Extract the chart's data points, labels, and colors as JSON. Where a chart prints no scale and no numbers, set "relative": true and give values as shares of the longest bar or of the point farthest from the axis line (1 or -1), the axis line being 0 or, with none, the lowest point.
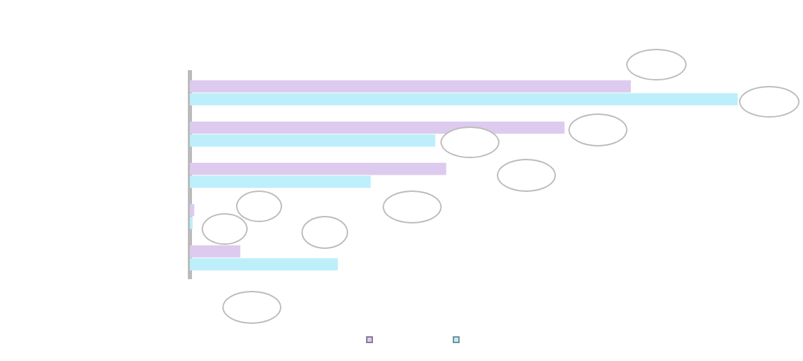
{
  "chart_data": {
    "type": "bar",
    "orientation": "horizontal",
    "relative": true,
    "categories": [
      null,
      null,
      null,
      null,
      null
    ],
    "series": [
      {
        "color": "#dccbee",
        "values": [
          0.805,
          0.684,
          0.468,
          0.008,
          0.092
        ]
      },
      {
        "color": "#bdeffb",
        "values": [
          1,
          0.448,
          0.33,
          0.005,
          0.27
        ]
      }
    ]
  }
}
